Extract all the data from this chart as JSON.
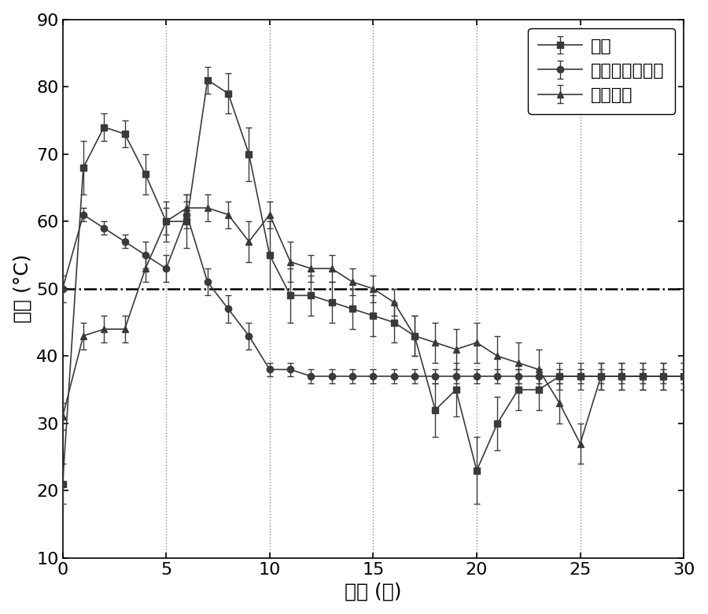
{
  "title": "",
  "xlabel": "时间 (天)",
  "ylabel": "温度 (°C)",
  "xlim": [
    0,
    30
  ],
  "ylim": [
    10,
    90
  ],
  "xticks": [
    0,
    5,
    10,
    15,
    20,
    25,
    30
  ],
  "yticks": [
    10,
    20,
    30,
    40,
    50,
    60,
    70,
    80,
    90
  ],
  "vlines": [
    5,
    10,
    15,
    20,
    25
  ],
  "hline": 50,
  "legend_labels": [
    "污泥",
    "畜禽粪便和沼渣",
    "餐厨垃圾"
  ],
  "series1_x": [
    0,
    1,
    2,
    3,
    4,
    5,
    6,
    7,
    8,
    9,
    10,
    11,
    12,
    13,
    14,
    15,
    16,
    17,
    18,
    19,
    20,
    21,
    22,
    23,
    24,
    25,
    26,
    27,
    28,
    29,
    30
  ],
  "series1_y": [
    21,
    68,
    74,
    73,
    67,
    60,
    60,
    81,
    79,
    70,
    55,
    49,
    49,
    48,
    47,
    46,
    45,
    43,
    32,
    35,
    23,
    30,
    35,
    35,
    37,
    37,
    37,
    37,
    37,
    37,
    37
  ],
  "series1_yerr": [
    3,
    4,
    2,
    2,
    3,
    3,
    4,
    2,
    3,
    4,
    5,
    4,
    3,
    3,
    3,
    3,
    3,
    3,
    4,
    4,
    5,
    4,
    3,
    3,
    2,
    2,
    2,
    2,
    2,
    2,
    2
  ],
  "series2_x": [
    0,
    1,
    2,
    3,
    4,
    5,
    6,
    7,
    8,
    9,
    10,
    11,
    12,
    13,
    14,
    15,
    16,
    17,
    18,
    19,
    20,
    21,
    22,
    23,
    24,
    25,
    26,
    27,
    28,
    29,
    30
  ],
  "series2_y": [
    50,
    61,
    59,
    57,
    55,
    53,
    61,
    51,
    47,
    43,
    38,
    38,
    37,
    37,
    37,
    37,
    37,
    37,
    37,
    37,
    37,
    37,
    37,
    37,
    37,
    37,
    37,
    37,
    37,
    37,
    37
  ],
  "series2_yerr": [
    2,
    1,
    1,
    1,
    2,
    2,
    2,
    2,
    2,
    2,
    1,
    1,
    1,
    1,
    1,
    1,
    1,
    1,
    1,
    1,
    1,
    1,
    1,
    1,
    1,
    1,
    1,
    1,
    1,
    1,
    1
  ],
  "series3_x": [
    0,
    1,
    2,
    3,
    4,
    5,
    6,
    7,
    8,
    9,
    10,
    11,
    12,
    13,
    14,
    15,
    16,
    17,
    18,
    19,
    20,
    21,
    22,
    23,
    24,
    25,
    26,
    27,
    28,
    29,
    30
  ],
  "series3_y": [
    31,
    43,
    44,
    44,
    53,
    60,
    62,
    62,
    61,
    57,
    61,
    54,
    53,
    53,
    51,
    50,
    48,
    43,
    42,
    41,
    42,
    40,
    39,
    38,
    33,
    27,
    37,
    37,
    37,
    37,
    37
  ],
  "series3_yerr": [
    2,
    2,
    2,
    2,
    2,
    2,
    2,
    2,
    2,
    3,
    2,
    3,
    2,
    2,
    2,
    2,
    2,
    3,
    3,
    3,
    3,
    3,
    3,
    3,
    3,
    3,
    2,
    2,
    2,
    2,
    2
  ],
  "color": "#3a3a3a",
  "marker1": "s",
  "marker2": "o",
  "marker3": "^",
  "markersize": 6,
  "linewidth": 1.2,
  "capsize": 3,
  "elinewidth": 1.0,
  "font_size_label": 18,
  "font_size_tick": 16,
  "font_size_legend": 16
}
